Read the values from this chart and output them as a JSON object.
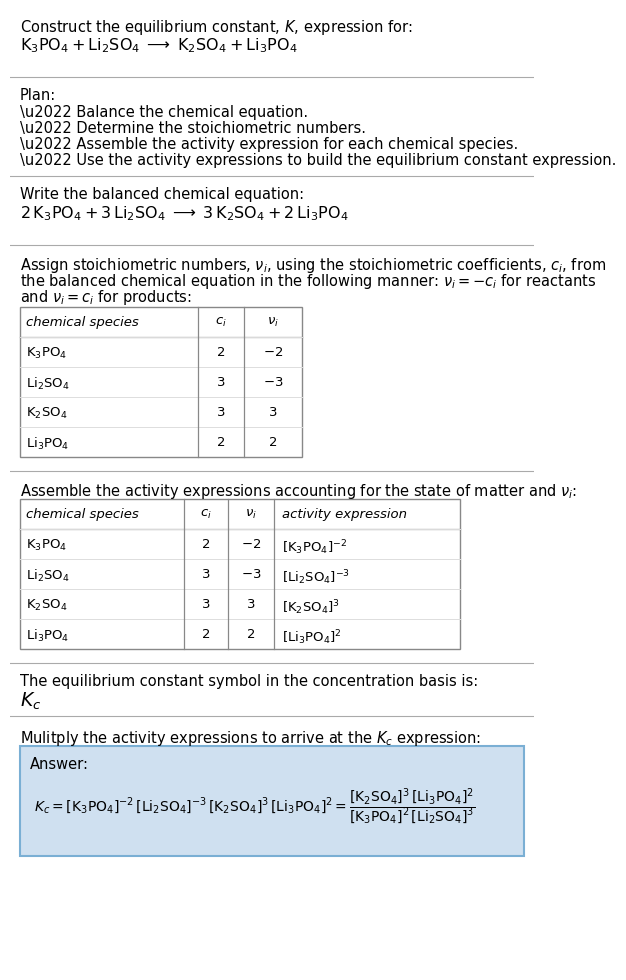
{
  "bg_color": "#ffffff",
  "text_color": "#000000",
  "title_line1": "Construct the equilibrium constant, $K$, expression for:",
  "title_line2": "$\\mathrm{K_3PO_4 + Li_2SO_4 \\;\\longrightarrow\\; K_2SO_4 + Li_3PO_4}$",
  "plan_header": "Plan:",
  "plan_items": [
    "\\u2022 Balance the chemical equation.",
    "\\u2022 Determine the stoichiometric numbers.",
    "\\u2022 Assemble the activity expression for each chemical species.",
    "\\u2022 Use the activity expressions to build the equilibrium constant expression."
  ],
  "balanced_header": "Write the balanced chemical equation:",
  "balanced_eq": "$\\mathrm{2\\,K_3PO_4 + 3\\,Li_2SO_4 \\;\\longrightarrow\\; 3\\,K_2SO_4 + 2\\,Li_3PO_4}$",
  "stoich_lines": [
    "Assign stoichiometric numbers, $\\nu_i$, using the stoichiometric coefficients, $c_i$, from",
    "the balanced chemical equation in the following manner: $\\nu_i = -c_i$ for reactants",
    "and $\\nu_i = c_i$ for products:"
  ],
  "table1_headers": [
    "chemical species",
    "$c_i$",
    "$\\nu_i$"
  ],
  "table1_rows": [
    [
      "$\\mathrm{K_3PO_4}$",
      "2",
      "$-2$"
    ],
    [
      "$\\mathrm{Li_2SO_4}$",
      "3",
      "$-3$"
    ],
    [
      "$\\mathrm{K_2SO_4}$",
      "3",
      "3"
    ],
    [
      "$\\mathrm{Li_3PO_4}$",
      "2",
      "2"
    ]
  ],
  "activity_header": "Assemble the activity expressions accounting for the state of matter and $\\nu_i$:",
  "table2_headers": [
    "chemical species",
    "$c_i$",
    "$\\nu_i$",
    "activity expression"
  ],
  "table2_rows": [
    [
      "$\\mathrm{K_3PO_4}$",
      "2",
      "$-2$",
      "$[\\mathrm{K_3PO_4}]^{-2}$"
    ],
    [
      "$\\mathrm{Li_2SO_4}$",
      "3",
      "$-3$",
      "$[\\mathrm{Li_2SO_4}]^{-3}$"
    ],
    [
      "$\\mathrm{K_2SO_4}$",
      "3",
      "3",
      "$[\\mathrm{K_2SO_4}]^{3}$"
    ],
    [
      "$\\mathrm{Li_3PO_4}$",
      "2",
      "2",
      "$[\\mathrm{Li_3PO_4}]^{2}$"
    ]
  ],
  "kc_text": "The equilibrium constant symbol in the concentration basis is:",
  "kc_symbol": "$K_c$",
  "multiply_text": "Mulitply the activity expressions to arrive at the $K_c$ expression:",
  "answer_box_color": "#cfe0f0",
  "answer_box_border": "#7aafd4",
  "answer_label": "Answer:",
  "answer_eq": "$K_c = [\\mathrm{K_3PO_4}]^{-2}\\,[\\mathrm{Li_2SO_4}]^{-3}\\,[\\mathrm{K_2SO_4}]^{3}\\,[\\mathrm{Li_3PO_4}]^{2} = \\dfrac{[\\mathrm{K_2SO_4}]^{3}\\,[\\mathrm{Li_3PO_4}]^{2}}{[\\mathrm{K_3PO_4}]^{2}\\,[\\mathrm{Li_2SO_4}]^{3}}$",
  "separator_color": "#aaaaaa",
  "table_border_color": "#888888",
  "table_row_color": "#dddddd"
}
